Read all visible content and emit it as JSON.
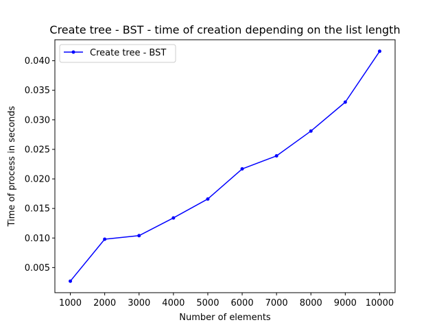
{
  "chart_data": {
    "type": "line",
    "title": "Create tree - BST - time of creation depending on the list length",
    "xlabel": "Number of elements",
    "ylabel": "Time of process in seconds",
    "x": [
      1000,
      2000,
      3000,
      4000,
      5000,
      6000,
      7000,
      8000,
      9000,
      10000
    ],
    "series": [
      {
        "name": "Create tree - BST",
        "color": "#0000ff",
        "marker": "point",
        "values": [
          0.0027,
          0.0098,
          0.0104,
          0.0134,
          0.0166,
          0.0217,
          0.0239,
          0.0281,
          0.033,
          0.0416
        ]
      }
    ],
    "xticks": [
      1000,
      2000,
      3000,
      4000,
      5000,
      6000,
      7000,
      8000,
      9000,
      10000
    ],
    "xtick_labels": [
      "1000",
      "2000",
      "3000",
      "4000",
      "5000",
      "6000",
      "7000",
      "8000",
      "9000",
      "10000"
    ],
    "yticks": [
      0.005,
      0.01,
      0.015,
      0.02,
      0.025,
      0.03,
      0.035,
      0.04
    ],
    "ytick_labels": [
      "0.005",
      "0.010",
      "0.015",
      "0.020",
      "0.025",
      "0.030",
      "0.035",
      "0.040"
    ],
    "xlim": [
      550,
      10450
    ],
    "ylim": [
      0.00075,
      0.04355
    ],
    "grid": false,
    "legend_position": "top-left"
  }
}
